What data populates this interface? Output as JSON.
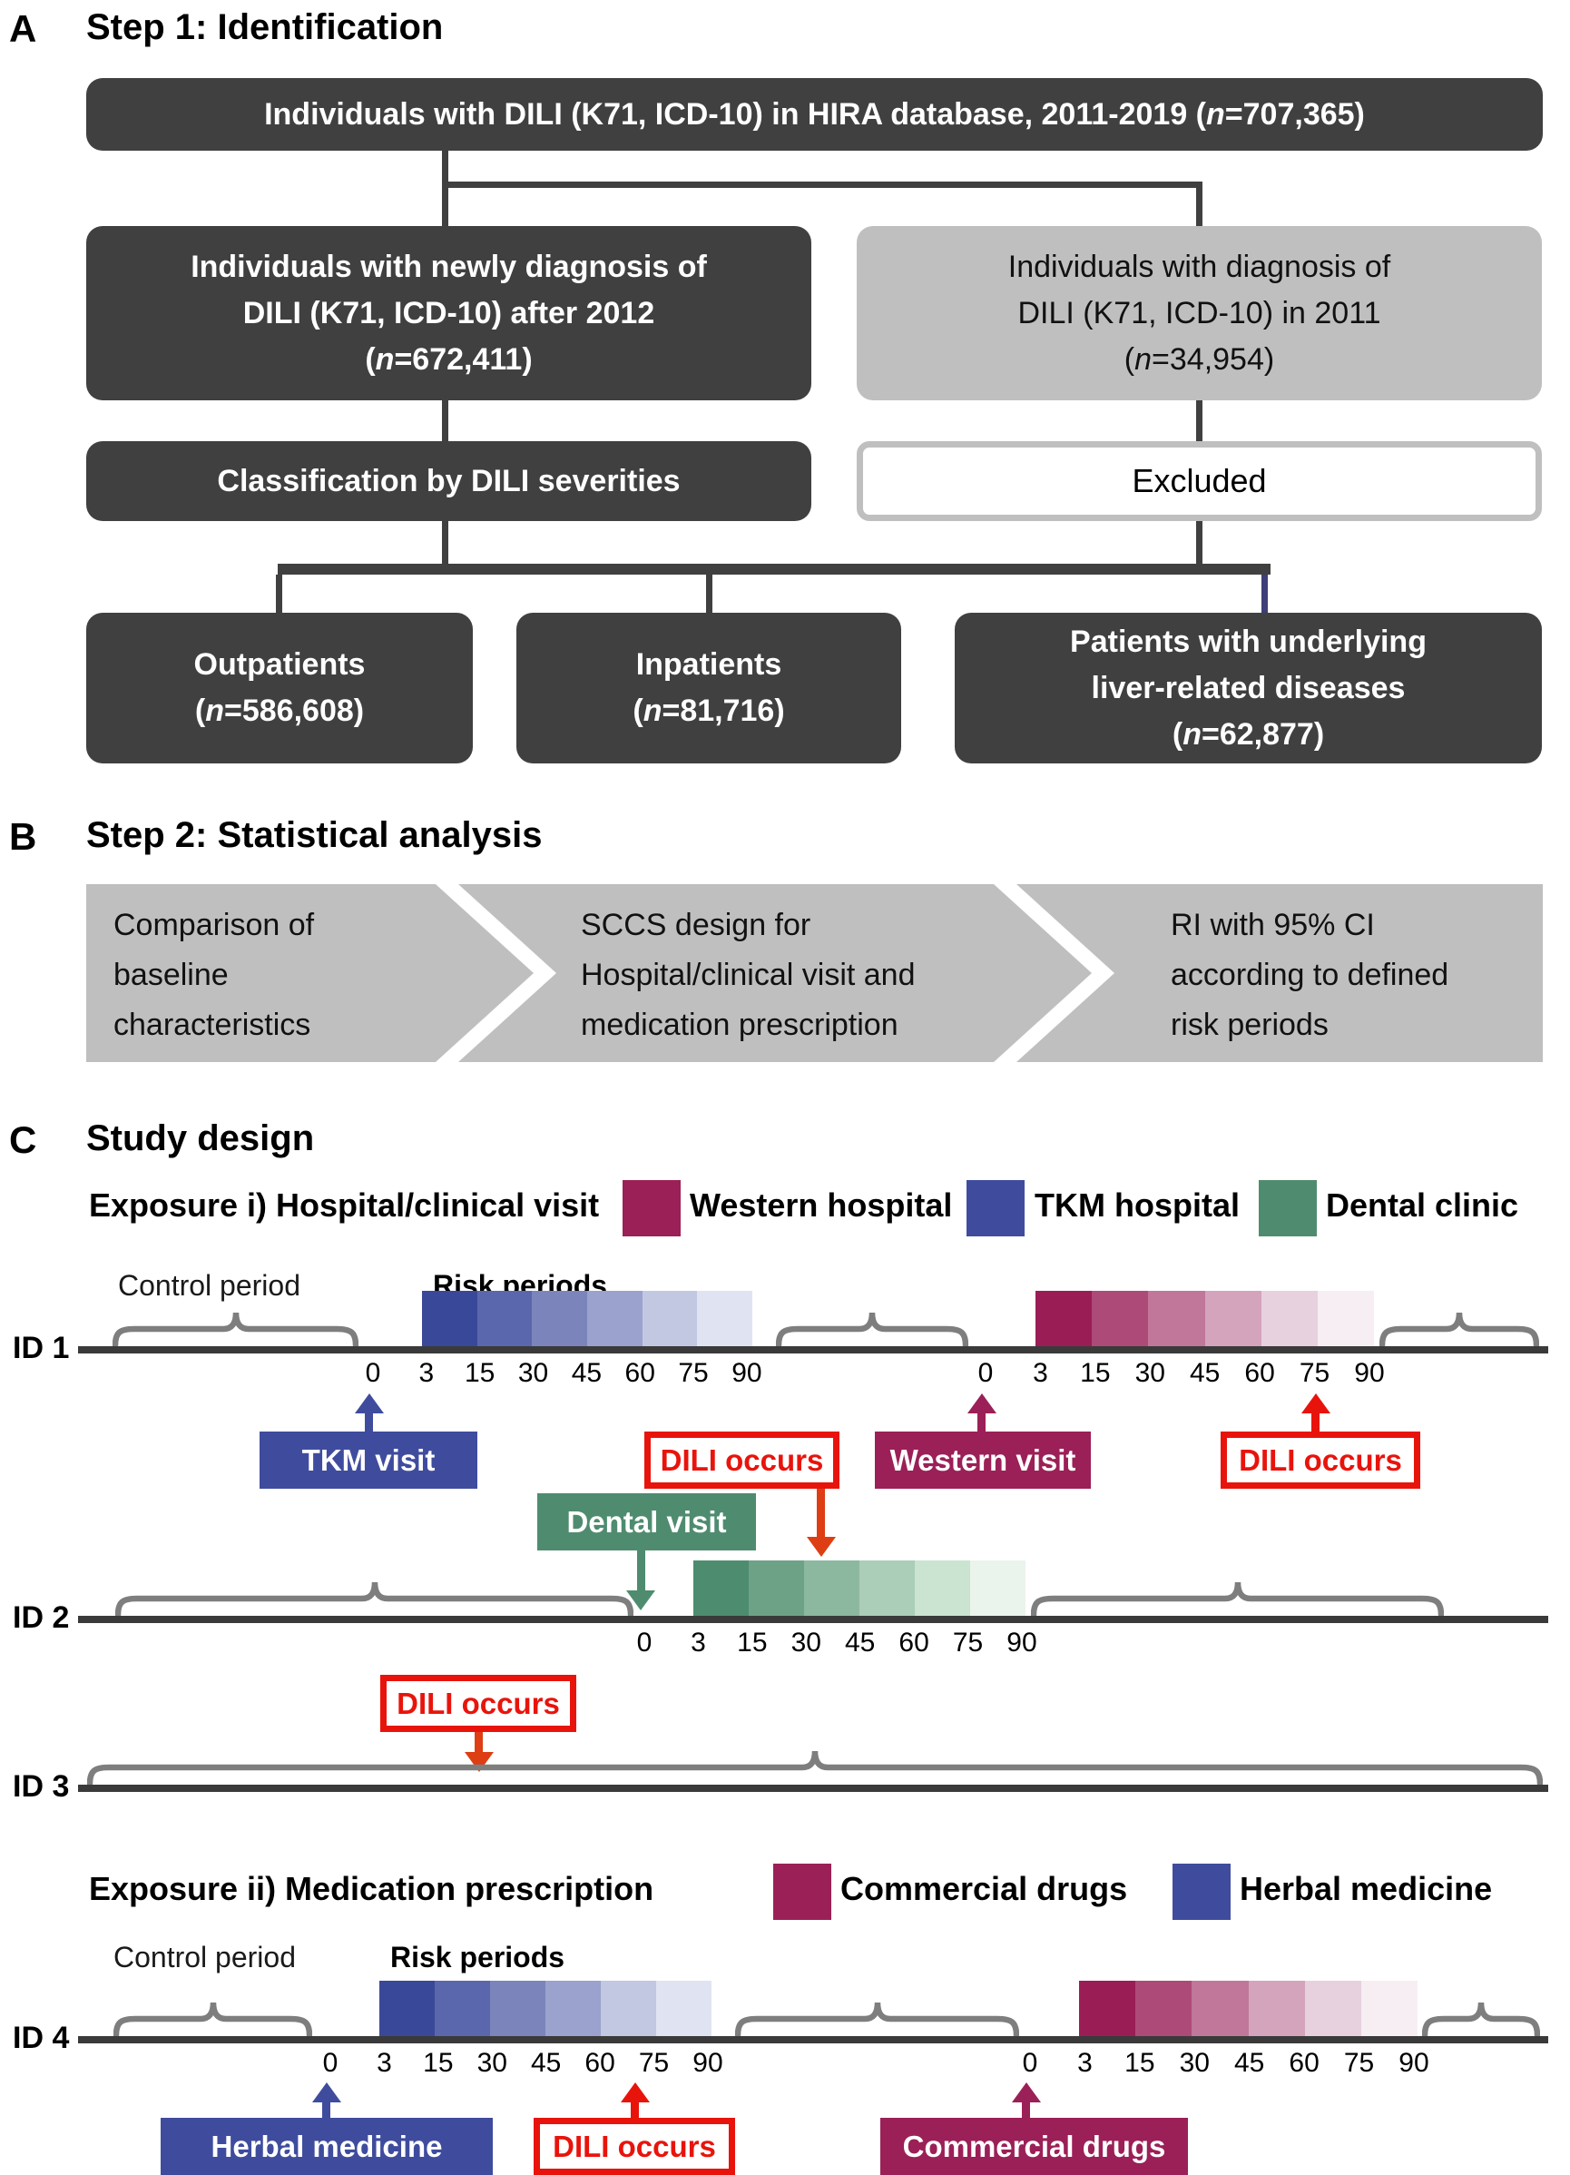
{
  "colors": {
    "dark_box": "#404040",
    "gray_box": "#bfbfbf",
    "chevron_gray": "#bfbfbf",
    "connector": "#404040",
    "navy_connector": "#3e3e78",
    "timeline": "#3a3a3a",
    "brace": "#7e7e7e",
    "tkm_blue": "#3f4c9e",
    "western_maroon": "#9b2057",
    "dental_green": "#4f8c6f",
    "dili_red": "#e8140c",
    "down_arrow_orange": "#dd3e14",
    "white": "#ffffff"
  },
  "gradients": {
    "blue": [
      "#3a4899",
      "#5b67ac",
      "#7b85bc",
      "#9aa2cd",
      "#c3c8e2",
      "#e0e3f2"
    ],
    "maroon": [
      "#9b1d56",
      "#ae4a78",
      "#c1779a",
      "#d4a4bd",
      "#e7d1de",
      "#f7eef3"
    ],
    "green": [
      "#4e8c6f",
      "#6da287",
      "#8cb8a0",
      "#abceb8",
      "#cae4d1",
      "#eaf4ec"
    ]
  },
  "risk_period_ticks": [
    "0",
    "3",
    "15",
    "30",
    "45",
    "60",
    "75",
    "90"
  ],
  "risk_period_days": [
    0,
    3,
    15,
    30,
    45,
    60,
    75,
    90
  ],
  "panelA": {
    "label": "A",
    "title": "Step 1: Identification",
    "top_box": "Individuals with DILI (K71, ICD-10) in HIRA database, 2011-2019 (n=707,365)",
    "newly_box_lines": [
      "Individuals with newly diagnosis of",
      "DILI (K71, ICD-10) after 2012",
      "(n=672,411)"
    ],
    "diag2011_box_lines": [
      "Individuals with diagnosis of",
      "DILI (K71, ICD-10) in 2011",
      "(n=34,954)"
    ],
    "classification_box": "Classification by DILI severities",
    "excluded_box": "Excluded",
    "outpatients_box_lines": [
      "Outpatients",
      "(n=586,608)"
    ],
    "inpatients_box_lines": [
      "Inpatients",
      "(n=81,716)"
    ],
    "liver_box_lines": [
      "Patients with underlying",
      "liver-related diseases",
      "(n=62,877)"
    ]
  },
  "panelB": {
    "label": "B",
    "title": "Step 2: Statistical analysis",
    "steps": [
      {
        "lines": [
          "Comparison of",
          "baseline",
          "characteristics"
        ]
      },
      {
        "lines": [
          "SCCS design for",
          "Hospital/clinical visit and",
          "medication prescription"
        ]
      },
      {
        "lines": [
          "RI with 95% CI",
          "according to defined",
          "risk periods"
        ]
      }
    ]
  },
  "panelC": {
    "label": "C",
    "title": "Study design",
    "exposure1": {
      "label": "Exposure i) Hospital/clinical visit",
      "legend": [
        {
          "label": "Western hospital",
          "color": "#9b2057"
        },
        {
          "label": "TKM hospital",
          "color": "#3f4c9e"
        },
        {
          "label": "Dental clinic",
          "color": "#4f8c6f"
        }
      ]
    },
    "exposure2": {
      "label": "Exposure ii) Medication prescription",
      "legend": [
        {
          "label": "Commercial drugs",
          "color": "#9b2057"
        },
        {
          "label": "Herbal medicine",
          "color": "#3f4c9e"
        }
      ]
    },
    "control_period_label": "Control period",
    "risk_periods_label": "Risk periods",
    "ids": [
      "ID 1",
      "ID 2",
      "ID 3",
      "ID 4"
    ],
    "boxes": {
      "tkm_visit": "TKM visit",
      "dili_occurs": "DILI occurs",
      "western_visit": "Western visit",
      "dental_visit": "Dental visit",
      "herbal_medicine": "Herbal medicine",
      "commercial_drugs": "Commercial drugs"
    }
  }
}
